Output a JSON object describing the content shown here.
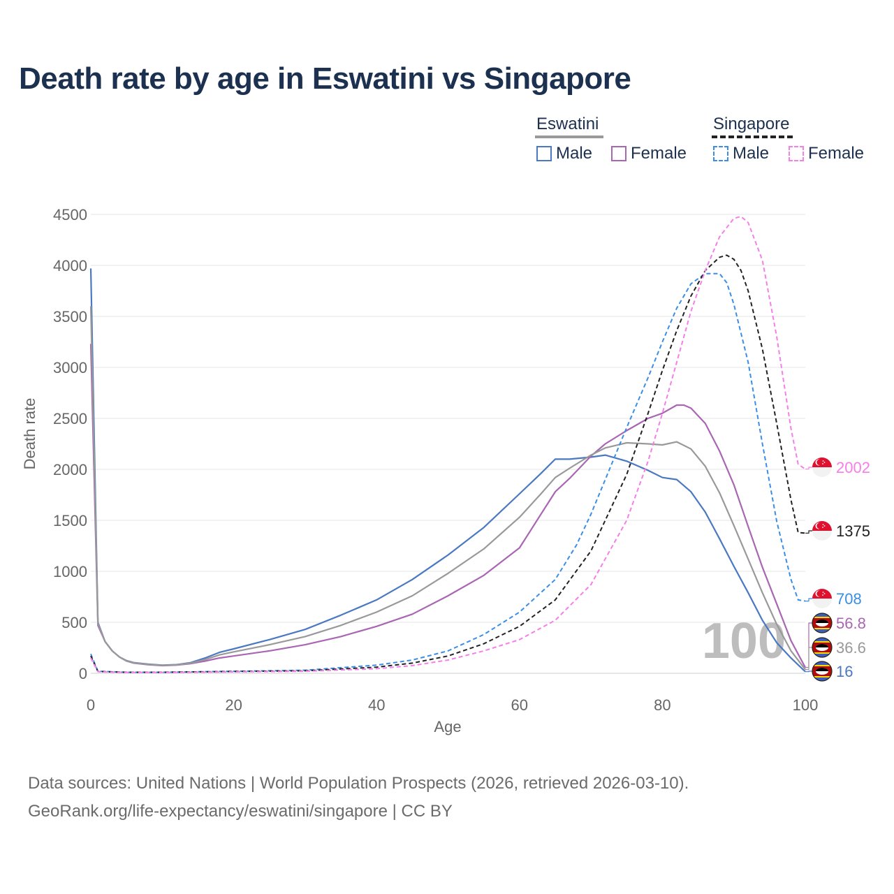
{
  "title": "Death rate by age in Eswatini vs Singapore",
  "legend": {
    "eswatini": {
      "label": "Eswatini",
      "male": "Male",
      "female": "Female"
    },
    "singapore": {
      "label": "Singapore",
      "male": "Male",
      "female": "Female"
    }
  },
  "colors": {
    "esw_male": "#4a78c2",
    "esw_female": "#a966b3",
    "esw_total": "#999999",
    "sgp_male": "#3a8ee6",
    "sgp_female": "#f57fe8",
    "sgp_total": "#222222",
    "title": "#1c3150"
  },
  "watermark": "100",
  "end_labels": {
    "sgp_female": "2002",
    "sgp_total": "1375",
    "sgp_male": "708",
    "esw_female": "56.8",
    "esw_total": "36.6",
    "esw_male": "16"
  },
  "footer": {
    "line1": "Data sources: United Nations | World Population Prospects (2026, retrieved 2026-03-10).",
    "line2": "GeoRank.org/life-expectancy/eswatini/singapore | CC BY"
  },
  "chart_data": {
    "type": "line",
    "title": "Death rate by age in Eswatini vs Singapore",
    "xlabel": "Age",
    "ylabel": "Death rate",
    "xlim": [
      0,
      100
    ],
    "ylim": [
      0,
      4500
    ],
    "xticks": [
      0,
      20,
      40,
      60,
      80,
      100
    ],
    "yticks": [
      0,
      500,
      1000,
      1500,
      2000,
      2500,
      3000,
      3500,
      4000,
      4500
    ],
    "series": [
      {
        "key": "esw_male",
        "name": "Eswatini Male",
        "dashed": false,
        "x": [
          0,
          1,
          2,
          3,
          4,
          5,
          6,
          8,
          10,
          12,
          14,
          16,
          18,
          20,
          25,
          30,
          35,
          40,
          45,
          50,
          55,
          60,
          63,
          65,
          67,
          70,
          72,
          75,
          78,
          80,
          82,
          84,
          86,
          88,
          90,
          92,
          94,
          96,
          98,
          100
        ],
        "values": [
          3970,
          500,
          310,
          220,
          160,
          125,
          105,
          90,
          80,
          85,
          105,
          150,
          205,
          240,
          330,
          430,
          570,
          720,
          920,
          1160,
          1430,
          1760,
          1960,
          2100,
          2100,
          2120,
          2140,
          2080,
          1990,
          1920,
          1900,
          1780,
          1580,
          1320,
          1050,
          790,
          520,
          300,
          150,
          16
        ]
      },
      {
        "key": "esw_female",
        "name": "Eswatini Female",
        "dashed": false,
        "x": [
          0,
          1,
          2,
          3,
          4,
          5,
          6,
          8,
          10,
          12,
          14,
          16,
          18,
          20,
          25,
          30,
          35,
          40,
          45,
          50,
          55,
          60,
          63,
          65,
          67,
          70,
          72,
          75,
          78,
          80,
          82,
          83,
          84,
          86,
          88,
          90,
          92,
          94,
          96,
          98,
          100
        ],
        "values": [
          3230,
          470,
          310,
          220,
          160,
          120,
          100,
          85,
          75,
          80,
          95,
          120,
          150,
          170,
          220,
          280,
          360,
          460,
          580,
          760,
          960,
          1230,
          1560,
          1780,
          1910,
          2130,
          2250,
          2380,
          2500,
          2550,
          2630,
          2630,
          2600,
          2450,
          2180,
          1850,
          1440,
          1040,
          680,
          320,
          57
        ]
      },
      {
        "key": "esw_total",
        "name": "Eswatini",
        "dashed": false,
        "x": [
          0,
          1,
          2,
          3,
          4,
          5,
          6,
          8,
          10,
          12,
          14,
          16,
          18,
          20,
          25,
          30,
          35,
          40,
          45,
          50,
          55,
          60,
          63,
          65,
          67,
          70,
          72,
          75,
          78,
          80,
          82,
          84,
          86,
          88,
          90,
          92,
          94,
          96,
          98,
          100
        ],
        "values": [
          3600,
          490,
          310,
          220,
          160,
          122,
          102,
          88,
          78,
          82,
          100,
          135,
          180,
          210,
          280,
          360,
          470,
          600,
          760,
          980,
          1220,
          1530,
          1760,
          1920,
          2010,
          2140,
          2210,
          2260,
          2250,
          2240,
          2270,
          2200,
          2030,
          1770,
          1450,
          1120,
          790,
          480,
          220,
          37
        ]
      },
      {
        "key": "sgp_male",
        "name": "Singapore Male",
        "dashed": true,
        "x": [
          0,
          1,
          5,
          10,
          20,
          30,
          40,
          45,
          50,
          55,
          60,
          65,
          68,
          70,
          72,
          75,
          78,
          80,
          82,
          84,
          86,
          88,
          89,
          90,
          92,
          94,
          96,
          98,
          99,
          100
        ],
        "values": [
          190,
          20,
          10,
          10,
          20,
          30,
          80,
          130,
          220,
          380,
          600,
          920,
          1260,
          1560,
          1900,
          2410,
          2900,
          3250,
          3580,
          3820,
          3920,
          3920,
          3830,
          3620,
          3050,
          2250,
          1490,
          920,
          720,
          708
        ]
      },
      {
        "key": "sgp_total",
        "name": "Singapore",
        "dashed": true,
        "x": [
          0,
          1,
          5,
          10,
          20,
          30,
          40,
          45,
          50,
          55,
          60,
          65,
          70,
          75,
          78,
          80,
          82,
          84,
          86,
          88,
          89,
          90,
          91,
          92,
          94,
          96,
          98,
          99,
          100
        ],
        "values": [
          170,
          18,
          10,
          10,
          18,
          25,
          60,
          100,
          170,
          290,
          460,
          720,
          1200,
          1950,
          2550,
          2970,
          3360,
          3700,
          3950,
          4080,
          4100,
          4060,
          3950,
          3750,
          3180,
          2450,
          1700,
          1380,
          1375
        ]
      },
      {
        "key": "sgp_female",
        "name": "Singapore Female",
        "dashed": true,
        "x": [
          0,
          1,
          5,
          10,
          20,
          30,
          40,
          45,
          50,
          55,
          60,
          65,
          70,
          75,
          78,
          80,
          82,
          84,
          86,
          88,
          90,
          91,
          92,
          94,
          96,
          98,
          99,
          100
        ],
        "values": [
          150,
          15,
          8,
          8,
          14,
          20,
          45,
          75,
          130,
          220,
          330,
          520,
          870,
          1500,
          2080,
          2550,
          3050,
          3550,
          3950,
          4280,
          4460,
          4480,
          4420,
          4050,
          3300,
          2400,
          2050,
          2002
        ]
      }
    ]
  }
}
